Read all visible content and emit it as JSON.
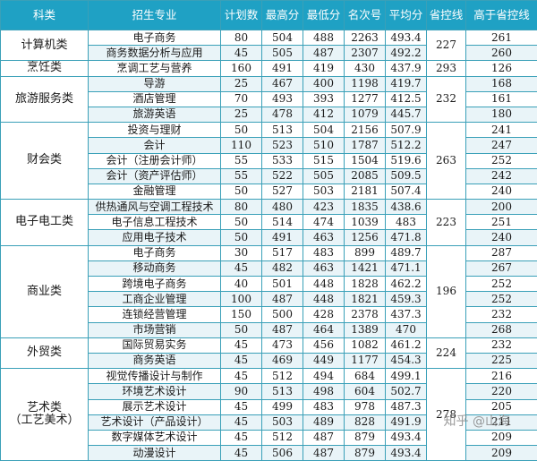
{
  "headers": [
    "科类",
    "招生专业",
    "计划数",
    "最高分",
    "最低分",
    "名次号",
    "平均分",
    "省控线",
    "高于省控线"
  ],
  "groups": [
    {
      "category": "计算机类",
      "control": "227",
      "rows": [
        {
          "major": "电子商务",
          "plan": "80",
          "max": "504",
          "min": "488",
          "rank": "2263",
          "avg": "493.4",
          "above": "261"
        },
        {
          "major": "商务数据分析与应用",
          "plan": "45",
          "max": "505",
          "min": "487",
          "rank": "2307",
          "avg": "492.2",
          "above": "260"
        }
      ]
    },
    {
      "category": "烹饪类",
      "control": "293",
      "rows": [
        {
          "major": "烹调工艺与营养",
          "plan": "160",
          "max": "491",
          "min": "419",
          "rank": "430",
          "avg": "437.9",
          "above": "126"
        }
      ]
    },
    {
      "category": "旅游服务类",
      "control": "232",
      "rows": [
        {
          "major": "导游",
          "plan": "25",
          "max": "467",
          "min": "400",
          "rank": "1198",
          "avg": "419.7",
          "above": "168"
        },
        {
          "major": "酒店管理",
          "plan": "70",
          "max": "493",
          "min": "393",
          "rank": "1277",
          "avg": "412.5",
          "above": "161"
        },
        {
          "major": "旅游英语",
          "plan": "25",
          "max": "478",
          "min": "412",
          "rank": "1079",
          "avg": "445.7",
          "above": "180"
        }
      ]
    },
    {
      "category": "财会类",
      "control": "263",
      "rows": [
        {
          "major": "投资与理财",
          "plan": "50",
          "max": "513",
          "min": "504",
          "rank": "2156",
          "avg": "507.9",
          "above": "241"
        },
        {
          "major": "会计",
          "plan": "110",
          "max": "523",
          "min": "510",
          "rank": "1787",
          "avg": "512.2",
          "above": "247"
        },
        {
          "major": "会计（注册会计师）",
          "plan": "55",
          "max": "533",
          "min": "515",
          "rank": "1504",
          "avg": "519.6",
          "above": "252"
        },
        {
          "major": "会计（资产评估师）",
          "plan": "55",
          "max": "522",
          "min": "505",
          "rank": "2085",
          "avg": "509.5",
          "above": "242"
        },
        {
          "major": "金融管理",
          "plan": "50",
          "max": "527",
          "min": "503",
          "rank": "2181",
          "avg": "507.4",
          "above": "240"
        }
      ]
    },
    {
      "category": "电子电工类",
      "control": "223",
      "rows": [
        {
          "major": "供热通风与空调工程技术",
          "plan": "80",
          "max": "480",
          "min": "423",
          "rank": "1835",
          "avg": "438.6",
          "above": "200"
        },
        {
          "major": "电子信息工程技术",
          "plan": "50",
          "max": "514",
          "min": "474",
          "rank": "1039",
          "avg": "483",
          "above": "251"
        },
        {
          "major": "应用电子技术",
          "plan": "50",
          "max": "491",
          "min": "463",
          "rank": "1256",
          "avg": "471.8",
          "above": "240"
        }
      ]
    },
    {
      "category": "商业类",
      "control": "196",
      "rows": [
        {
          "major": "电子商务",
          "plan": "30",
          "max": "517",
          "min": "483",
          "rank": "899",
          "avg": "489.7",
          "above": "287"
        },
        {
          "major": "移动商务",
          "plan": "45",
          "max": "482",
          "min": "463",
          "rank": "1421",
          "avg": "471.1",
          "above": "267"
        },
        {
          "major": "跨境电子商务",
          "plan": "40",
          "max": "501",
          "min": "448",
          "rank": "1828",
          "avg": "462.2",
          "above": "252"
        },
        {
          "major": "工商企业管理",
          "plan": "100",
          "max": "487",
          "min": "448",
          "rank": "1821",
          "avg": "459.3",
          "above": "252"
        },
        {
          "major": "连锁经营管理",
          "plan": "150",
          "max": "500",
          "min": "428",
          "rank": "2378",
          "avg": "437.3",
          "above": "232"
        },
        {
          "major": "市场营销",
          "plan": "50",
          "max": "487",
          "min": "464",
          "rank": "1389",
          "avg": "470",
          "above": "268"
        }
      ]
    },
    {
      "category": "外贸类",
      "control": "224",
      "rows": [
        {
          "major": "国际贸易实务",
          "plan": "45",
          "max": "473",
          "min": "456",
          "rank": "1082",
          "avg": "461.2",
          "above": "232"
        },
        {
          "major": "商务英语",
          "plan": "45",
          "max": "469",
          "min": "449",
          "rank": "1177",
          "avg": "454.3",
          "above": "225"
        }
      ]
    },
    {
      "category": "艺术类\n（工艺美术）",
      "control": "278",
      "rows": [
        {
          "major": "视觉传播设计与制作",
          "plan": "45",
          "max": "512",
          "min": "494",
          "rank": "684",
          "avg": "499.1",
          "above": "216"
        },
        {
          "major": "环境艺术设计",
          "plan": "90",
          "max": "513",
          "min": "498",
          "rank": "604",
          "avg": "502.7",
          "above": "220"
        },
        {
          "major": "展示艺术设计",
          "plan": "45",
          "max": "499",
          "min": "483",
          "rank": "978",
          "avg": "487.3",
          "above": "205"
        },
        {
          "major": "艺术设计（产品设计）",
          "plan": "45",
          "max": "503",
          "min": "489",
          "rank": "828",
          "avg": "491.9",
          "above": "211"
        },
        {
          "major": "数字媒体艺术设计",
          "plan": "45",
          "max": "512",
          "min": "487",
          "rank": "879",
          "avg": "493.4",
          "above": "209"
        },
        {
          "major": "动漫设计",
          "plan": "45",
          "max": "506",
          "min": "487",
          "rank": "879",
          "avg": "493.4",
          "above": "209"
        }
      ]
    }
  ],
  "watermark": "知乎 @山海"
}
